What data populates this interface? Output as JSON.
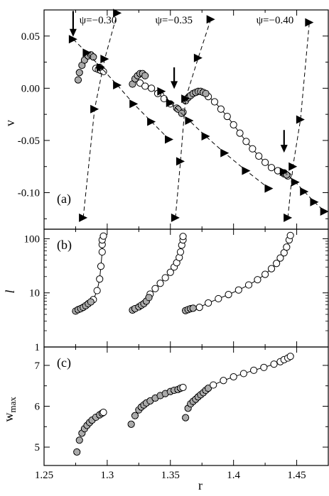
{
  "chart_data": [
    {
      "panel": "(a)",
      "type": "scatter",
      "ylabel": "v",
      "xlabel": "",
      "xlim": [
        1.25,
        1.475
      ],
      "ylim": [
        -0.135,
        0.075
      ],
      "ytick_labels": [
        "0.05",
        "0.00",
        "-0.05",
        "-0.10"
      ],
      "ytick_values": [
        0.05,
        0.0,
        -0.05,
        -0.1
      ],
      "xtick_values": [
        1.25,
        1.3,
        1.35,
        1.4,
        1.45
      ],
      "annotations": [
        {
          "text": "ψ=−0.30",
          "x": 1.278,
          "y": 0.062
        },
        {
          "text": "ψ=−0.35",
          "x": 1.338,
          "y": 0.062
        },
        {
          "text": "ψ=−0.40",
          "x": 1.418,
          "y": 0.062
        }
      ],
      "arrows": [
        {
          "x": 1.273,
          "y_from": 0.074,
          "y_to": 0.05
        },
        {
          "x": 1.353,
          "y_from": 0.02,
          "y_to": 0.0
        },
        {
          "x": 1.44,
          "y_from": -0.04,
          "y_to": -0.061
        }
      ],
      "series": [
        {
          "style": "open-circles-line",
          "points": [
            [
              1.326,
              0.005
            ],
            [
              1.33,
              0.002
            ],
            [
              1.335,
              0.0
            ],
            [
              1.34,
              -0.005
            ],
            [
              1.345,
              -0.01
            ],
            [
              1.35,
              -0.015
            ],
            [
              1.355,
              -0.019
            ],
            [
              1.36,
              -0.023
            ]
          ]
        },
        {
          "style": "open-circles-line",
          "points": [
            [
              1.38,
              -0.008
            ],
            [
              1.385,
              -0.013
            ],
            [
              1.39,
              -0.02
            ],
            [
              1.395,
              -0.027
            ],
            [
              1.4,
              -0.035
            ],
            [
              1.405,
              -0.043
            ],
            [
              1.41,
              -0.051
            ],
            [
              1.415,
              -0.058
            ],
            [
              1.42,
              -0.065
            ],
            [
              1.425,
              -0.071
            ],
            [
              1.43,
              -0.076
            ],
            [
              1.435,
              -0.079
            ],
            [
              1.44,
              -0.082
            ],
            [
              1.443,
              -0.084
            ]
          ]
        },
        {
          "style": "open-circles-line",
          "points": [
            [
              1.291,
              0.019
            ],
            [
              1.293,
              0.018
            ],
            [
              1.295,
              0.017
            ],
            [
              1.297,
              0.016
            ]
          ]
        },
        {
          "style": "hatched-circles",
          "points": [
            [
              1.277,
              0.008
            ],
            [
              1.278,
              0.015
            ],
            [
              1.28,
              0.022
            ],
            [
              1.282,
              0.027
            ],
            [
              1.285,
              0.031
            ],
            [
              1.287,
              0.032
            ],
            [
              1.289,
              0.03
            ],
            [
              1.294,
              0.02
            ]
          ]
        },
        {
          "style": "hatched-circles",
          "points": [
            [
              1.32,
              0.004
            ],
            [
              1.322,
              0.009
            ],
            [
              1.324,
              0.012
            ],
            [
              1.326,
              0.014
            ],
            [
              1.328,
              0.014
            ],
            [
              1.33,
              0.012
            ],
            [
              1.356,
              -0.02
            ],
            [
              1.359,
              -0.024
            ]
          ]
        },
        {
          "style": "hatched-circles",
          "points": [
            [
              1.362,
              -0.012
            ],
            [
              1.364,
              -0.009
            ],
            [
              1.366,
              -0.007
            ],
            [
              1.368,
              -0.005
            ],
            [
              1.37,
              -0.004
            ],
            [
              1.372,
              -0.003
            ],
            [
              1.374,
              -0.003
            ],
            [
              1.376,
              -0.004
            ],
            [
              1.378,
              -0.005
            ],
            [
              1.44,
              -0.081
            ],
            [
              1.442,
              -0.083
            ]
          ]
        },
        {
          "style": "filled-triangles-dashed",
          "points": [
            [
              1.273,
              0.047
            ],
            [
              1.284,
              0.034
            ],
            [
              1.295,
              0.02
            ],
            [
              1.308,
              0.003
            ],
            [
              1.321,
              -0.015
            ],
            [
              1.335,
              -0.032
            ],
            [
              1.349,
              -0.049
            ]
          ]
        },
        {
          "style": "filled-triangles-dashed",
          "points": [
            [
              1.343,
              -0.003
            ],
            [
              1.35,
              -0.014
            ],
            [
              1.365,
              -0.031
            ],
            [
              1.378,
              -0.046
            ],
            [
              1.393,
              -0.062
            ],
            [
              1.41,
              -0.079
            ],
            [
              1.428,
              -0.096
            ]
          ]
        },
        {
          "style": "filled-triangles-dashed",
          "points": [
            [
              1.44,
              -0.08
            ],
            [
              1.449,
              -0.09
            ],
            [
              1.456,
              -0.099
            ],
            [
              1.464,
              -0.109
            ],
            [
              1.472,
              -0.118
            ]
          ]
        },
        {
          "style": "filled-triangles-dashed",
          "points": [
            [
              1.281,
              -0.124
            ],
            [
              1.29,
              -0.02
            ],
            [
              1.298,
              0.028
            ],
            [
              1.308,
              0.072
            ]
          ]
        },
        {
          "style": "filled-triangles-dashed",
          "points": [
            [
              1.354,
              -0.124
            ],
            [
              1.358,
              -0.07
            ],
            [
              1.362,
              -0.01
            ],
            [
              1.372,
              0.029
            ],
            [
              1.382,
              0.066
            ]
          ]
        },
        {
          "style": "filled-triangles-dashed",
          "points": [
            [
              1.443,
              -0.124
            ],
            [
              1.447,
              -0.075
            ],
            [
              1.453,
              -0.03
            ],
            [
              1.46,
              0.063
            ]
          ]
        }
      ]
    },
    {
      "panel": "(b)",
      "type": "scatter",
      "ylabel": "l",
      "xlabel": "",
      "yscale": "log",
      "xlim": [
        1.25,
        1.475
      ],
      "ylim": [
        1,
        150
      ],
      "ytick_labels": [
        "1",
        "10",
        "100"
      ],
      "ytick_values": [
        1,
        10,
        100
      ],
      "series": [
        {
          "style": "open-circles-line",
          "points": [
            [
              1.289,
              7.5
            ],
            [
              1.292,
              11
            ],
            [
              1.294,
              18
            ],
            [
              1.295,
              31
            ],
            [
              1.296,
              57
            ],
            [
              1.296,
              78
            ],
            [
              1.296,
              95
            ],
            [
              1.297,
              112
            ]
          ]
        },
        {
          "style": "hatched-circles",
          "points": [
            [
              1.275,
              4.6
            ],
            [
              1.277,
              4.9
            ],
            [
              1.279,
              5.1
            ],
            [
              1.281,
              5.4
            ],
            [
              1.283,
              5.8
            ],
            [
              1.285,
              6.3
            ],
            [
              1.287,
              6.8
            ]
          ]
        },
        {
          "style": "open-circles-line",
          "points": [
            [
              1.334,
              9.5
            ],
            [
              1.338,
              12
            ],
            [
              1.342,
              15
            ],
            [
              1.346,
              19
            ],
            [
              1.35,
              24
            ],
            [
              1.353,
              30
            ],
            [
              1.355,
              36
            ],
            [
              1.357,
              45
            ],
            [
              1.358,
              57
            ],
            [
              1.359,
              76
            ],
            [
              1.36,
              95
            ],
            [
              1.36,
              110
            ]
          ]
        },
        {
          "style": "hatched-circles",
          "points": [
            [
              1.32,
              4.8
            ],
            [
              1.322,
              5.1
            ],
            [
              1.325,
              5.5
            ],
            [
              1.327,
              5.9
            ],
            [
              1.329,
              6.3
            ],
            [
              1.331,
              7
            ],
            [
              1.333,
              8.2
            ]
          ]
        },
        {
          "style": "open-circles-line",
          "points": [
            [
              1.373,
              5.4
            ],
            [
              1.38,
              6.5
            ],
            [
              1.388,
              7.8
            ],
            [
              1.396,
              9.3
            ],
            [
              1.404,
              11.3
            ],
            [
              1.412,
              14
            ],
            [
              1.419,
              17.5
            ],
            [
              1.425,
              22
            ],
            [
              1.43,
              28
            ],
            [
              1.434,
              35
            ],
            [
              1.437,
              44
            ],
            [
              1.44,
              55
            ],
            [
              1.442,
              70
            ],
            [
              1.444,
              95
            ],
            [
              1.445,
              115
            ]
          ]
        },
        {
          "style": "hatched-circles",
          "points": [
            [
              1.362,
              4.7
            ],
            [
              1.364,
              4.9
            ],
            [
              1.366,
              5.1
            ],
            [
              1.368,
              5.2
            ]
          ]
        }
      ]
    },
    {
      "panel": "(c)",
      "type": "scatter",
      "ylabel": "w_max",
      "xlabel": "r",
      "xlim": [
        1.25,
        1.475
      ],
      "ylim": [
        4.55,
        7.45
      ],
      "ytick_labels": [
        "5",
        "6",
        "7"
      ],
      "ytick_values": [
        5,
        6,
        7
      ],
      "xtick_labels": [
        "1.25",
        "1.3",
        "1.35",
        "1.4",
        "1.45"
      ],
      "xtick_values": [
        1.25,
        1.3,
        1.35,
        1.4,
        1.45
      ],
      "series": [
        {
          "style": "hatched-circles",
          "points": [
            [
              1.276,
              4.88
            ],
            [
              1.278,
              5.17
            ],
            [
              1.28,
              5.34
            ],
            [
              1.282,
              5.45
            ],
            [
              1.284,
              5.53
            ],
            [
              1.286,
              5.6
            ],
            [
              1.288,
              5.66
            ],
            [
              1.291,
              5.73
            ],
            [
              1.294,
              5.79
            ],
            [
              1.296,
              5.83
            ]
          ]
        },
        {
          "style": "open-circles-line",
          "points": [
            [
              1.297,
              5.85
            ]
          ]
        },
        {
          "style": "hatched-circles",
          "points": [
            [
              1.319,
              5.56
            ],
            [
              1.322,
              5.77
            ],
            [
              1.325,
              5.91
            ],
            [
              1.327,
              5.98
            ],
            [
              1.329,
              6.03
            ],
            [
              1.331,
              6.08
            ],
            [
              1.334,
              6.13
            ],
            [
              1.338,
              6.2
            ],
            [
              1.342,
              6.26
            ],
            [
              1.346,
              6.31
            ],
            [
              1.35,
              6.36
            ],
            [
              1.353,
              6.39
            ],
            [
              1.356,
              6.41
            ],
            [
              1.358,
              6.44
            ]
          ]
        },
        {
          "style": "open-circles-line",
          "points": [
            [
              1.36,
              6.46
            ]
          ]
        },
        {
          "style": "hatched-circles",
          "points": [
            [
              1.362,
              5.72
            ],
            [
              1.364,
              5.95
            ],
            [
              1.366,
              6.06
            ],
            [
              1.368,
              6.12
            ],
            [
              1.37,
              6.17
            ],
            [
              1.372,
              6.23
            ],
            [
              1.374,
              6.28
            ],
            [
              1.376,
              6.33
            ],
            [
              1.378,
              6.39
            ],
            [
              1.38,
              6.44
            ]
          ]
        },
        {
          "style": "open-circles-line",
          "points": [
            [
              1.384,
              6.52
            ],
            [
              1.392,
              6.63
            ],
            [
              1.4,
              6.72
            ],
            [
              1.408,
              6.8
            ],
            [
              1.416,
              6.88
            ],
            [
              1.424,
              6.95
            ],
            [
              1.432,
              7.03
            ],
            [
              1.437,
              7.09
            ],
            [
              1.44,
              7.14
            ],
            [
              1.443,
              7.18
            ],
            [
              1.445,
              7.22
            ]
          ]
        }
      ]
    }
  ]
}
